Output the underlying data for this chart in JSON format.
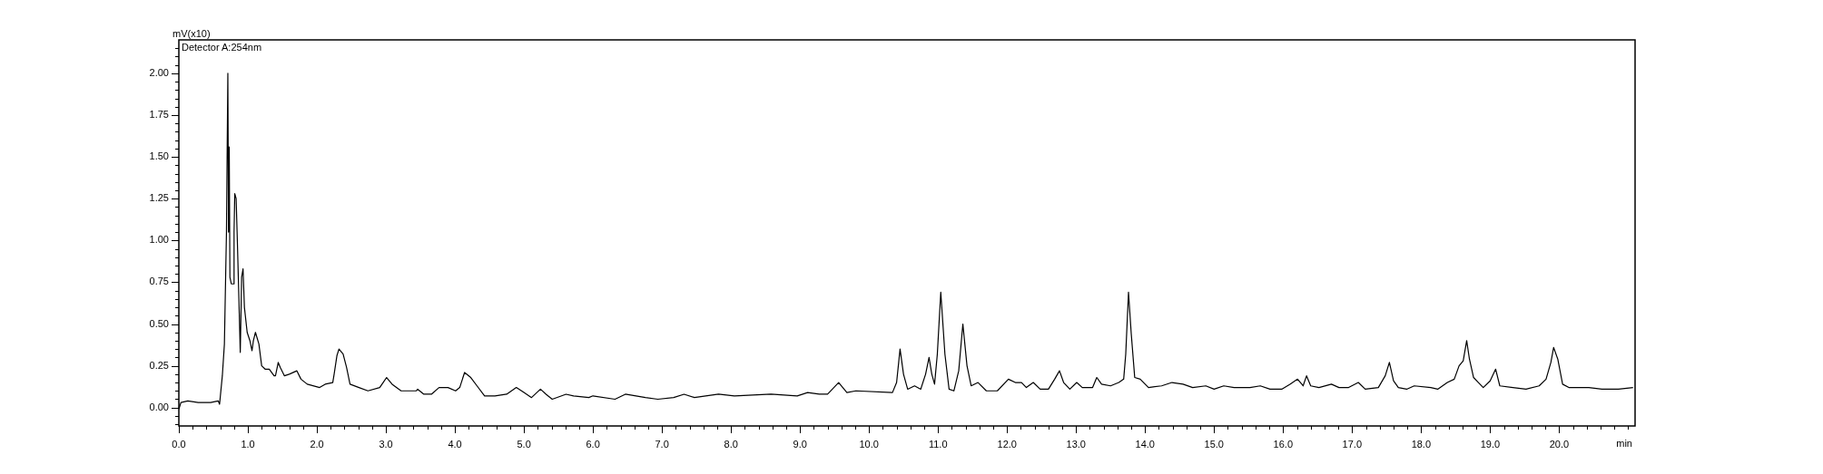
{
  "chart_data": {
    "type": "line",
    "xlabel": "min",
    "ylabel": "mV(x10)",
    "annotations": [
      "Detector A:254nm"
    ],
    "x": [
      0,
      0.03,
      0.13,
      0.28,
      0.46,
      0.57,
      0.59,
      0.63,
      0.66,
      0.68,
      0.69,
      0.71,
      0.72,
      0.73,
      0.74,
      0.76,
      0.79,
      0.8,
      0.81,
      0.83,
      0.85,
      0.87,
      0.89,
      0.91,
      0.93,
      0.95,
      0.99,
      1.03,
      1.06,
      1.08,
      1.11,
      1.16,
      1.2,
      1.25,
      1.31,
      1.38,
      1.4,
      1.44,
      1.47,
      1.53,
      1.6,
      1.71,
      1.77,
      1.86,
      2.04,
      2.12,
      2.23,
      2.25,
      2.29,
      2.32,
      2.38,
      2.43,
      2.48,
      2.61,
      2.74,
      2.91,
      2.96,
      3.01,
      3.09,
      3.22,
      3.44,
      3.46,
      3.55,
      3.66,
      3.77,
      3.9,
      4.01,
      4.07,
      4.14,
      4.23,
      4.32,
      4.43,
      4.58,
      4.75,
      4.89,
      5,
      5.11,
      5.24,
      5.32,
      5.41,
      5.61,
      5.72,
      5.94,
      6,
      6.32,
      6.47,
      6.76,
      6.94,
      7.17,
      7.32,
      7.47,
      7.82,
      8.05,
      8.58,
      8.96,
      9.11,
      9.28,
      9.4,
      9.56,
      9.68,
      9.81,
      10.34,
      10.4,
      10.45,
      10.5,
      10.56,
      10.66,
      10.75,
      10.82,
      10.87,
      10.91,
      10.95,
      10.99,
      11.04,
      11.1,
      11.16,
      11.23,
      11.3,
      11.36,
      11.42,
      11.48,
      11.58,
      11.7,
      11.86,
      12.02,
      12.12,
      12.21,
      12.28,
      12.38,
      12.48,
      12.6,
      12.69,
      12.76,
      12.82,
      12.91,
      13.01,
      13.09,
      13.24,
      13.3,
      13.37,
      13.5,
      13.62,
      13.69,
      13.72,
      13.76,
      13.8,
      13.85,
      13.93,
      14.05,
      14.24,
      14.39,
      14.55,
      14.69,
      14.88,
      15,
      15.14,
      15.29,
      15.52,
      15.67,
      15.81,
      15.98,
      16.1,
      16.21,
      16.29,
      16.34,
      16.4,
      16.52,
      16.7,
      16.81,
      16.95,
      17.09,
      17.19,
      17.38,
      17.48,
      17.54,
      17.6,
      17.67,
      17.79,
      17.9,
      18.14,
      18.24,
      18.38,
      18.48,
      18.55,
      18.61,
      18.66,
      18.7,
      18.76,
      18.83,
      18.9,
      19,
      19.08,
      19.14,
      19.33,
      19.52,
      19.71,
      19.81,
      19.88,
      19.92,
      19.98,
      20.05,
      20.14,
      20.43,
      20.62,
      20.86,
      21.07
    ],
    "series": [
      {
        "color": "#000000",
        "values": [
          -0.01,
          0.03,
          0.04,
          0.03,
          0.03,
          0.04,
          0.02,
          0.19,
          0.38,
          0.83,
          1.05,
          2.0,
          1.05,
          1.56,
          0.78,
          0.74,
          0.74,
          1.05,
          1.28,
          1.25,
          0.96,
          0.65,
          0.33,
          0.78,
          0.83,
          0.6,
          0.45,
          0.4,
          0.34,
          0.4,
          0.45,
          0.38,
          0.25,
          0.23,
          0.23,
          0.19,
          0.19,
          0.27,
          0.24,
          0.19,
          0.2,
          0.22,
          0.17,
          0.14,
          0.12,
          0.14,
          0.15,
          0.2,
          0.31,
          0.35,
          0.32,
          0.24,
          0.14,
          0.12,
          0.1,
          0.12,
          0.15,
          0.18,
          0.14,
          0.1,
          0.1,
          0.11,
          0.08,
          0.08,
          0.12,
          0.12,
          0.1,
          0.12,
          0.21,
          0.18,
          0.13,
          0.07,
          0.07,
          0.08,
          0.12,
          0.09,
          0.06,
          0.11,
          0.08,
          0.05,
          0.08,
          0.07,
          0.06,
          0.07,
          0.05,
          0.08,
          0.06,
          0.05,
          0.06,
          0.08,
          0.06,
          0.08,
          0.07,
          0.08,
          0.07,
          0.09,
          0.08,
          0.08,
          0.15,
          0.09,
          0.1,
          0.09,
          0.15,
          0.35,
          0.2,
          0.11,
          0.13,
          0.11,
          0.2,
          0.3,
          0.2,
          0.14,
          0.32,
          0.69,
          0.32,
          0.11,
          0.1,
          0.22,
          0.5,
          0.25,
          0.13,
          0.15,
          0.1,
          0.1,
          0.17,
          0.15,
          0.15,
          0.12,
          0.15,
          0.11,
          0.11,
          0.17,
          0.22,
          0.15,
          0.11,
          0.15,
          0.12,
          0.12,
          0.18,
          0.14,
          0.13,
          0.15,
          0.17,
          0.32,
          0.69,
          0.44,
          0.18,
          0.17,
          0.12,
          0.13,
          0.15,
          0.14,
          0.12,
          0.13,
          0.11,
          0.13,
          0.12,
          0.12,
          0.13,
          0.11,
          0.11,
          0.14,
          0.17,
          0.13,
          0.19,
          0.13,
          0.12,
          0.14,
          0.12,
          0.12,
          0.15,
          0.11,
          0.12,
          0.19,
          0.27,
          0.16,
          0.12,
          0.11,
          0.13,
          0.12,
          0.11,
          0.15,
          0.17,
          0.25,
          0.28,
          0.4,
          0.29,
          0.18,
          0.15,
          0.12,
          0.16,
          0.23,
          0.13,
          0.12,
          0.11,
          0.13,
          0.17,
          0.27,
          0.36,
          0.29,
          0.14,
          0.12,
          0.12,
          0.11,
          0.11,
          0.12
        ]
      }
    ],
    "xlim": [
      0,
      21.1
    ],
    "ylim": [
      -0.11,
      2.2
    ],
    "xticks": [
      {
        "value": 0,
        "label": "0.0"
      },
      {
        "value": 0.2,
        "label": null
      },
      {
        "value": 0.4,
        "label": null
      },
      {
        "value": 0.6,
        "label": null
      },
      {
        "value": 0.8,
        "label": null
      },
      {
        "value": 1,
        "label": "1.0"
      },
      {
        "value": 1.2,
        "label": null
      },
      {
        "value": 1.4,
        "label": null
      },
      {
        "value": 1.6,
        "label": null
      },
      {
        "value": 1.8,
        "label": null
      },
      {
        "value": 2,
        "label": "2.0"
      },
      {
        "value": 2.2,
        "label": null
      },
      {
        "value": 2.4,
        "label": null
      },
      {
        "value": 2.6,
        "label": null
      },
      {
        "value": 2.8,
        "label": null
      },
      {
        "value": 3,
        "label": "3.0"
      },
      {
        "value": 3.2,
        "label": null
      },
      {
        "value": 3.4,
        "label": null
      },
      {
        "value": 3.6,
        "label": null
      },
      {
        "value": 3.8,
        "label": null
      },
      {
        "value": 4,
        "label": "4.0"
      },
      {
        "value": 4.2,
        "label": null
      },
      {
        "value": 4.4,
        "label": null
      },
      {
        "value": 4.6,
        "label": null
      },
      {
        "value": 4.8,
        "label": null
      },
      {
        "value": 5,
        "label": "5.0"
      },
      {
        "value": 5.2,
        "label": null
      },
      {
        "value": 5.4,
        "label": null
      },
      {
        "value": 5.6,
        "label": null
      },
      {
        "value": 5.8,
        "label": null
      },
      {
        "value": 6,
        "label": "6.0"
      },
      {
        "value": 6.2,
        "label": null
      },
      {
        "value": 6.4,
        "label": null
      },
      {
        "value": 6.6,
        "label": null
      },
      {
        "value": 6.8,
        "label": null
      },
      {
        "value": 7,
        "label": "7.0"
      },
      {
        "value": 7.2,
        "label": null
      },
      {
        "value": 7.4,
        "label": null
      },
      {
        "value": 7.6,
        "label": null
      },
      {
        "value": 7.8,
        "label": null
      },
      {
        "value": 8,
        "label": "8.0"
      },
      {
        "value": 8.2,
        "label": null
      },
      {
        "value": 8.4,
        "label": null
      },
      {
        "value": 8.6,
        "label": null
      },
      {
        "value": 8.8,
        "label": null
      },
      {
        "value": 9,
        "label": "9.0"
      },
      {
        "value": 9.2,
        "label": null
      },
      {
        "value": 9.4,
        "label": null
      },
      {
        "value": 9.6,
        "label": null
      },
      {
        "value": 9.8,
        "label": null
      },
      {
        "value": 10,
        "label": "10.0"
      },
      {
        "value": 10.2,
        "label": null
      },
      {
        "value": 10.4,
        "label": null
      },
      {
        "value": 10.6,
        "label": null
      },
      {
        "value": 10.8,
        "label": null
      },
      {
        "value": 11,
        "label": "11.0"
      },
      {
        "value": 11.2,
        "label": null
      },
      {
        "value": 11.4,
        "label": null
      },
      {
        "value": 11.6,
        "label": null
      },
      {
        "value": 11.8,
        "label": null
      },
      {
        "value": 12,
        "label": "12.0"
      },
      {
        "value": 12.2,
        "label": null
      },
      {
        "value": 12.4,
        "label": null
      },
      {
        "value": 12.6,
        "label": null
      },
      {
        "value": 12.8,
        "label": null
      },
      {
        "value": 13,
        "label": "13.0"
      },
      {
        "value": 13.2,
        "label": null
      },
      {
        "value": 13.4,
        "label": null
      },
      {
        "value": 13.6,
        "label": null
      },
      {
        "value": 13.8,
        "label": null
      },
      {
        "value": 14,
        "label": "14.0"
      },
      {
        "value": 14.2,
        "label": null
      },
      {
        "value": 14.4,
        "label": null
      },
      {
        "value": 14.6,
        "label": null
      },
      {
        "value": 14.8,
        "label": null
      },
      {
        "value": 15,
        "label": "15.0"
      },
      {
        "value": 15.2,
        "label": null
      },
      {
        "value": 15.4,
        "label": null
      },
      {
        "value": 15.6,
        "label": null
      },
      {
        "value": 15.8,
        "label": null
      },
      {
        "value": 16,
        "label": "16.0"
      },
      {
        "value": 16.2,
        "label": null
      },
      {
        "value": 16.4,
        "label": null
      },
      {
        "value": 16.6,
        "label": null
      },
      {
        "value": 16.8,
        "label": null
      },
      {
        "value": 17,
        "label": "17.0"
      },
      {
        "value": 17.2,
        "label": null
      },
      {
        "value": 17.4,
        "label": null
      },
      {
        "value": 17.6,
        "label": null
      },
      {
        "value": 17.8,
        "label": null
      },
      {
        "value": 18,
        "label": "18.0"
      },
      {
        "value": 18.2,
        "label": null
      },
      {
        "value": 18.4,
        "label": null
      },
      {
        "value": 18.6,
        "label": null
      },
      {
        "value": 18.8,
        "label": null
      },
      {
        "value": 19,
        "label": "19.0"
      },
      {
        "value": 19.2,
        "label": null
      },
      {
        "value": 19.4,
        "label": null
      },
      {
        "value": 19.6,
        "label": null
      },
      {
        "value": 19.8,
        "label": null
      },
      {
        "value": 20,
        "label": "20.0"
      },
      {
        "value": 20.2,
        "label": null
      },
      {
        "value": 20.4,
        "label": null
      },
      {
        "value": 20.6,
        "label": null
      },
      {
        "value": 20.8,
        "label": null
      },
      {
        "value": 21,
        "label": null
      }
    ],
    "yticks": [
      {
        "value": -0.1,
        "label": null
      },
      {
        "value": -0.05,
        "label": null
      },
      {
        "value": 0,
        "label": "0.00"
      },
      {
        "value": 0.05,
        "label": null
      },
      {
        "value": 0.1,
        "label": null
      },
      {
        "value": 0.15,
        "label": null
      },
      {
        "value": 0.2,
        "label": null
      },
      {
        "value": 0.25,
        "label": "0.25"
      },
      {
        "value": 0.3,
        "label": null
      },
      {
        "value": 0.35,
        "label": null
      },
      {
        "value": 0.4,
        "label": null
      },
      {
        "value": 0.45,
        "label": null
      },
      {
        "value": 0.5,
        "label": "0.50"
      },
      {
        "value": 0.55,
        "label": null
      },
      {
        "value": 0.6,
        "label": null
      },
      {
        "value": 0.65,
        "label": null
      },
      {
        "value": 0.7,
        "label": null
      },
      {
        "value": 0.75,
        "label": "0.75"
      },
      {
        "value": 0.8,
        "label": null
      },
      {
        "value": 0.85,
        "label": null
      },
      {
        "value": 0.9,
        "label": null
      },
      {
        "value": 0.95,
        "label": null
      },
      {
        "value": 1,
        "label": "1.00"
      },
      {
        "value": 1.05,
        "label": null
      },
      {
        "value": 1.1,
        "label": null
      },
      {
        "value": 1.15,
        "label": null
      },
      {
        "value": 1.2,
        "label": null
      },
      {
        "value": 1.25,
        "label": "1.25"
      },
      {
        "value": 1.3,
        "label": null
      },
      {
        "value": 1.35,
        "label": null
      },
      {
        "value": 1.4,
        "label": null
      },
      {
        "value": 1.45,
        "label": null
      },
      {
        "value": 1.5,
        "label": "1.50"
      },
      {
        "value": 1.55,
        "label": null
      },
      {
        "value": 1.6,
        "label": null
      },
      {
        "value": 1.65,
        "label": null
      },
      {
        "value": 1.7,
        "label": null
      },
      {
        "value": 1.75,
        "label": "1.75"
      },
      {
        "value": 1.8,
        "label": null
      },
      {
        "value": 1.85,
        "label": null
      },
      {
        "value": 1.9,
        "label": null
      },
      {
        "value": 1.95,
        "label": null
      },
      {
        "value": 2,
        "label": "2.00"
      },
      {
        "value": 2.05,
        "label": null
      },
      {
        "value": 2.1,
        "label": null
      },
      {
        "value": 2.15,
        "label": null
      }
    ]
  }
}
